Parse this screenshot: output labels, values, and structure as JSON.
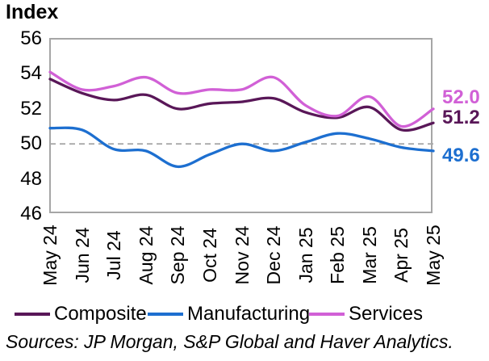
{
  "title": "Index",
  "chart_data": {
    "type": "line",
    "title": "Index",
    "categories": [
      "May 24",
      "Jun 24",
      "Jul 24",
      "Aug 24",
      "Sep 24",
      "Oct 24",
      "Nov 24",
      "Dec 24",
      "Jan 25",
      "Feb 25",
      "Mar 25",
      "Apr 25",
      "May 25"
    ],
    "series": [
      {
        "name": "Composite",
        "color": "#591758",
        "end_label": "51.2",
        "values": [
          53.7,
          52.9,
          52.5,
          52.8,
          52.0,
          52.3,
          52.4,
          52.6,
          51.8,
          51.5,
          52.1,
          50.8,
          51.2
        ]
      },
      {
        "name": "Manufacturing",
        "color": "#1d6fd0",
        "end_label": "49.6",
        "values": [
          50.9,
          50.8,
          49.7,
          49.6,
          48.7,
          49.4,
          50.0,
          49.6,
          50.1,
          50.6,
          50.3,
          49.8,
          49.6
        ]
      },
      {
        "name": "Services",
        "color": "#d160d6",
        "end_label": "52.0",
        "values": [
          54.1,
          53.1,
          53.3,
          53.8,
          52.9,
          53.1,
          53.1,
          53.8,
          52.2,
          51.6,
          52.7,
          51.0,
          52.0
        ]
      }
    ],
    "ylim": [
      46,
      56
    ],
    "yticks": [
      56,
      54,
      52,
      50,
      48,
      46
    ],
    "reference_line": 50,
    "grid": "dashed horizontal line at 50 only",
    "legend_position": "bottom"
  },
  "colors": {
    "axis_border": "#a6a6a6",
    "reference_dash": "#a9a9a9",
    "composite": "#591758",
    "manufacturing": "#1d6fd0",
    "services": "#d160d6"
  },
  "sources": "Sources: JP Morgan, S&P Global and Haver Analytics."
}
